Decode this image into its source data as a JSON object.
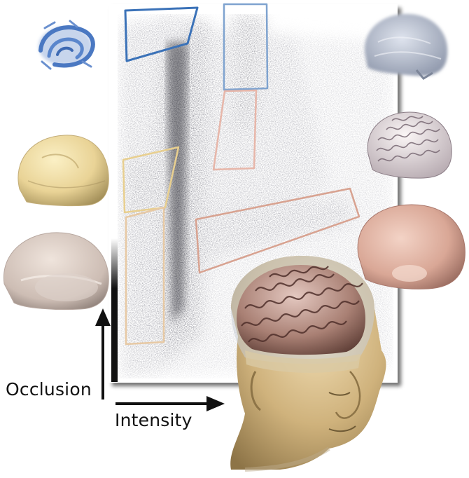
{
  "axes": {
    "y_label": "Occlusion",
    "x_label": "Intensity"
  },
  "colors": {
    "background": "#ffffff",
    "histogram_panel": "#ffffff",
    "histogram_density": "#3a3a40",
    "axis_bar": "#111111",
    "region_blue_dark": "#3b72b8",
    "region_blue_light": "#7fa3cf",
    "region_pink": "#e7b6a9",
    "region_yellow": "#e8cf8f",
    "region_yellow_light": "#e7c9a4",
    "region_salmon": "#d8a290"
  },
  "regions": [
    {
      "name": "blue-dark",
      "color_key": "region_blue_dark",
      "thumbnail": "blue-vessels-render"
    },
    {
      "name": "blue-light",
      "color_key": "region_blue_light",
      "thumbnail": "grey-fuzzy-brain-render"
    },
    {
      "name": "pink",
      "color_key": "region_pink",
      "thumbnail": "white-brain-surface-render"
    },
    {
      "name": "yellow-upper",
      "color_key": "region_yellow",
      "thumbnail": "yellow-skull-render"
    },
    {
      "name": "yellow-lower",
      "color_key": "region_yellow_light",
      "thumbnail": "translucent-skull-render"
    },
    {
      "name": "salmon",
      "color_key": "region_salmon",
      "thumbnail": "pink-skin-render"
    }
  ],
  "main_render": "head-brain-volume-render"
}
